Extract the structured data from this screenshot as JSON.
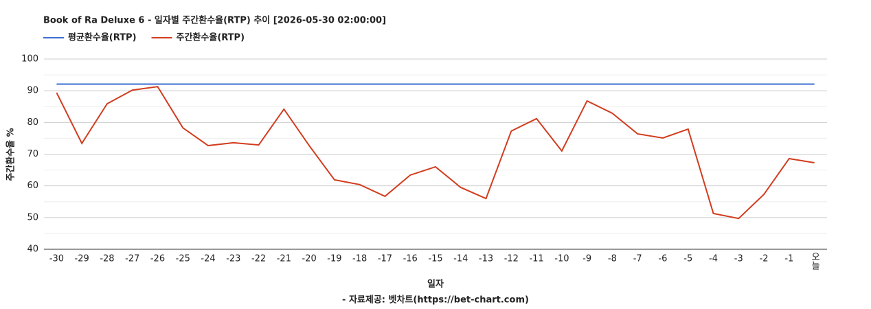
{
  "chart_data": {
    "type": "line",
    "title": "Book of Ra Deluxe 6 - 일자별 주간환수율(RTP) 추이 [2026-05-30 02:00:00]",
    "x_label": "일자",
    "y_label": "주간환수율 %",
    "source": "- 자료제공: 벳차트(https://bet-chart.com)",
    "categories": [
      "-30",
      "-29",
      "-28",
      "-27",
      "-26",
      "-25",
      "-24",
      "-23",
      "-22",
      "-21",
      "-20",
      "-19",
      "-18",
      "-17",
      "-16",
      "-15",
      "-14",
      "-13",
      "-12",
      "-11",
      "-10",
      "-9",
      "-8",
      "-7",
      "-6",
      "-5",
      "-4",
      "-3",
      "-2",
      "-1",
      "오늘"
    ],
    "series": [
      {
        "name": "평균환수율(RTP)",
        "color": "#3c6fd1",
        "values": [
          92.1,
          92.1,
          92.1,
          92.1,
          92.1,
          92.1,
          92.1,
          92.1,
          92.1,
          92.1,
          92.1,
          92.1,
          92.1,
          92.1,
          92.1,
          92.1,
          92.1,
          92.1,
          92.1,
          92.1,
          92.1,
          92.1,
          92.1,
          92.1,
          92.1,
          92.1,
          92.1,
          92.1,
          92.1,
          92.1,
          92.1
        ]
      },
      {
        "name": "주간환수율(RTP)",
        "color": "#d23c1e",
        "values": [
          89.4,
          73.4,
          85.9,
          90.2,
          91.3,
          78.3,
          72.7,
          73.6,
          72.9,
          84.2,
          72.7,
          61.9,
          60.4,
          56.7,
          63.4,
          66,
          59.5,
          56,
          77.3,
          81.2,
          71,
          86.8,
          82.9,
          76.4,
          75.1,
          77.9,
          51.3,
          49.7,
          57.3,
          68.6,
          67.3
        ]
      }
    ],
    "ylim": [
      40,
      100
    ],
    "yticks": [
      40,
      50,
      60,
      70,
      80,
      90,
      100
    ],
    "minor_yticks": [
      45,
      55,
      65,
      75,
      85,
      95
    ],
    "grid": true,
    "legend": "top-left"
  }
}
